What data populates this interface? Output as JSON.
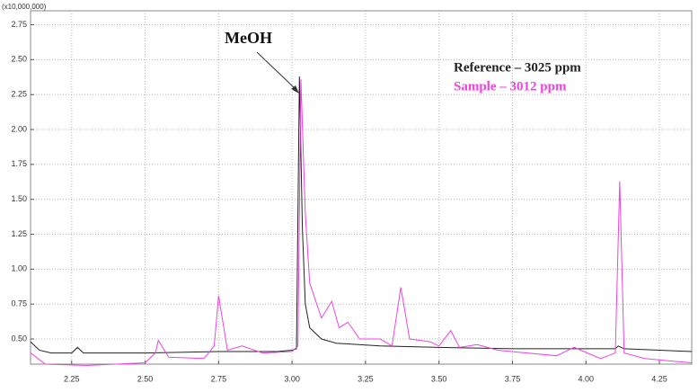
{
  "chart_data": {
    "type": "line",
    "y_multiplier": "(x10,000,000)",
    "annotation": "MeOH",
    "xlim": [
      2.11,
      4.36
    ],
    "ylim": [
      0.32,
      2.85
    ],
    "xticks": [
      {
        "value": 2.25,
        "label": "2.25"
      },
      {
        "value": 2.5,
        "label": "2.50"
      },
      {
        "value": 2.75,
        "label": "2.75"
      },
      {
        "value": 3.0,
        "label": "3.00"
      },
      {
        "value": 3.25,
        "label": "3.25"
      },
      {
        "value": 3.5,
        "label": "3.50"
      },
      {
        "value": 3.75,
        "label": "3.75"
      },
      {
        "value": 4.0,
        "label": "4.00"
      },
      {
        "value": 4.25,
        "label": "4.25"
      }
    ],
    "yticks": [
      {
        "value": 0.5,
        "label": "0.50"
      },
      {
        "value": 0.75,
        "label": "0.75"
      },
      {
        "value": 1.0,
        "label": "1.00"
      },
      {
        "value": 1.25,
        "label": "1.25"
      },
      {
        "value": 1.5,
        "label": "1.50"
      },
      {
        "value": 1.75,
        "label": "1.75"
      },
      {
        "value": 2.0,
        "label": "2.00"
      },
      {
        "value": 2.25,
        "label": "2.25"
      },
      {
        "value": 2.5,
        "label": "2.50"
      },
      {
        "value": 2.75,
        "label": "2.75"
      }
    ],
    "grid": true,
    "legend": "top-right",
    "series": [
      {
        "name": "Reference – 3025 ppm",
        "color": "#222222",
        "x": [
          2.11,
          2.14,
          2.18,
          2.25,
          2.27,
          2.29,
          2.5,
          2.75,
          2.95,
          3.0,
          3.015,
          3.025,
          3.035,
          3.045,
          3.06,
          3.1,
          3.15,
          3.3,
          3.5,
          3.75,
          4.0,
          4.1,
          4.11,
          4.13,
          4.25,
          4.36
        ],
        "values": [
          0.48,
          0.42,
          0.4,
          0.4,
          0.44,
          0.4,
          0.4,
          0.41,
          0.41,
          0.42,
          0.43,
          2.38,
          1.3,
          0.75,
          0.58,
          0.5,
          0.47,
          0.45,
          0.44,
          0.43,
          0.43,
          0.43,
          0.45,
          0.43,
          0.42,
          0.41
        ]
      },
      {
        "name": "Sample – 3012 ppm",
        "color": "#ee44dd",
        "x": [
          2.11,
          2.16,
          2.3,
          2.5,
          2.535,
          2.545,
          2.58,
          2.7,
          2.735,
          2.75,
          2.78,
          2.83,
          2.9,
          3.0,
          3.02,
          3.03,
          3.045,
          3.06,
          3.1,
          3.135,
          3.16,
          3.19,
          3.23,
          3.3,
          3.34,
          3.37,
          3.4,
          3.47,
          3.5,
          3.54,
          3.57,
          3.63,
          3.7,
          3.8,
          3.9,
          3.96,
          4.05,
          4.1,
          4.115,
          4.13,
          4.2,
          4.3,
          4.36
        ],
        "values": [
          0.4,
          0.32,
          0.31,
          0.33,
          0.4,
          0.49,
          0.37,
          0.36,
          0.45,
          0.81,
          0.42,
          0.45,
          0.4,
          0.41,
          0.45,
          2.36,
          1.4,
          0.9,
          0.65,
          0.77,
          0.58,
          0.62,
          0.5,
          0.5,
          0.45,
          0.87,
          0.5,
          0.48,
          0.45,
          0.56,
          0.44,
          0.46,
          0.42,
          0.4,
          0.38,
          0.44,
          0.36,
          0.4,
          1.63,
          0.4,
          0.36,
          0.34,
          0.33
        ]
      }
    ]
  }
}
